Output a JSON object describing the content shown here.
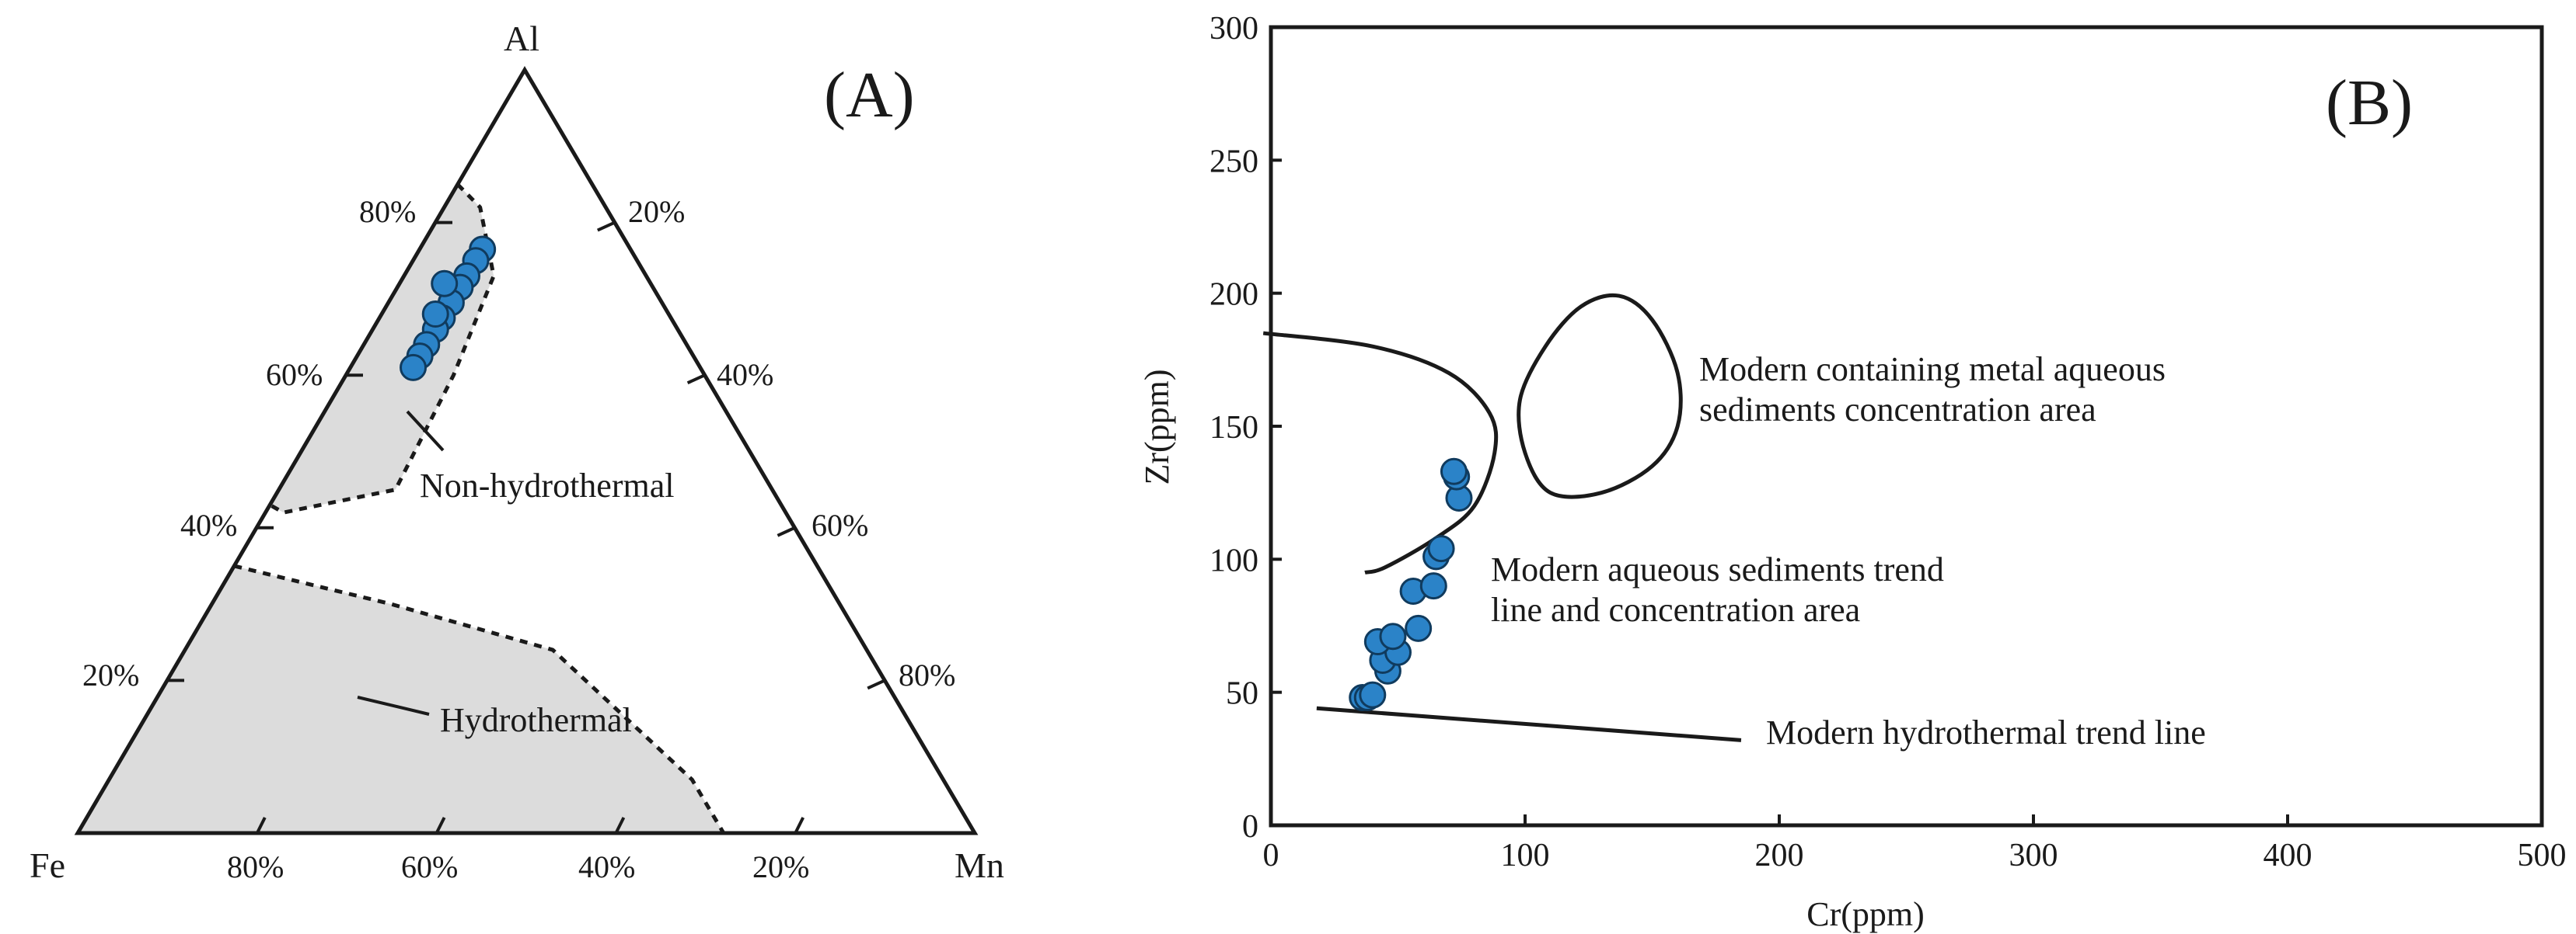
{
  "chart_data": [
    {
      "type": "ternary",
      "panel_label": "(A)",
      "vertices": {
        "top": "Al",
        "left": "Fe",
        "right": "Mn"
      },
      "left_edge_ticks": [
        "80%",
        "60%",
        "40%",
        "20%"
      ],
      "right_edge_ticks": [
        "20%",
        "40%",
        "60%",
        "80%"
      ],
      "base_ticks": [
        "80%",
        "60%",
        "40%",
        "20%"
      ],
      "fields": [
        {
          "name": "Non-hydrothermal",
          "outline": [
            [
              0.15,
              0.85,
              0.0
            ],
            [
              0.14,
              0.82,
              0.04
            ],
            [
              0.17,
              0.73,
              0.1
            ],
            [
              0.28,
              0.6,
              0.12
            ],
            [
              0.42,
              0.45,
              0.13
            ],
            [
              0.56,
              0.42,
              0.02
            ],
            [
              0.57,
              0.43,
              0.0
            ]
          ]
        },
        {
          "name": "Hydrothermal",
          "outline": [
            [
              0.65,
              0.35,
              0.0
            ],
            [
              0.5,
              0.3,
              0.2
            ],
            [
              0.35,
              0.24,
              0.41
            ],
            [
              0.28,
              0.07,
              0.65
            ],
            [
              0.28,
              0.0,
              0.72
            ],
            [
              1.0,
              0.0,
              0.0
            ]
          ]
        }
      ],
      "points": [
        [
          0.165,
          0.765,
          0.07
        ],
        [
          0.18,
          0.75,
          0.07
        ],
        [
          0.2,
          0.73,
          0.07
        ],
        [
          0.215,
          0.715,
          0.07
        ],
        [
          0.235,
          0.695,
          0.07
        ],
        [
          0.255,
          0.675,
          0.07
        ],
        [
          0.27,
          0.66,
          0.07
        ],
        [
          0.29,
          0.64,
          0.07
        ],
        [
          0.305,
          0.625,
          0.07
        ],
        [
          0.32,
          0.61,
          0.07
        ],
        [
          0.23,
          0.72,
          0.05
        ],
        [
          0.26,
          0.68,
          0.06
        ]
      ]
    },
    {
      "type": "scatter",
      "panel_label": "(B)",
      "xlabel": "Cr(ppm)",
      "ylabel": "Zr(ppm)",
      "xlim": [
        0,
        500
      ],
      "ylim": [
        0,
        300
      ],
      "xticks": [
        0,
        100,
        200,
        300,
        400,
        500
      ],
      "yticks": [
        0,
        50,
        100,
        150,
        200,
        250,
        300
      ],
      "points": [
        {
          "x": 36,
          "y": 48
        },
        {
          "x": 38,
          "y": 48
        },
        {
          "x": 40,
          "y": 49
        },
        {
          "x": 46,
          "y": 58
        },
        {
          "x": 44,
          "y": 62
        },
        {
          "x": 50,
          "y": 65
        },
        {
          "x": 42,
          "y": 69
        },
        {
          "x": 48,
          "y": 71
        },
        {
          "x": 58,
          "y": 74
        },
        {
          "x": 56,
          "y": 88
        },
        {
          "x": 64,
          "y": 90
        },
        {
          "x": 65,
          "y": 101
        },
        {
          "x": 67,
          "y": 104
        },
        {
          "x": 74,
          "y": 123
        },
        {
          "x": 73,
          "y": 131
        },
        {
          "x": 72,
          "y": 133
        }
      ],
      "curves": [
        {
          "name": "aqueous-trend-region",
          "points": [
            [
              -3,
              185
            ],
            [
              40,
              180
            ],
            [
              70,
              170
            ],
            [
              86,
              155
            ],
            [
              88,
              140
            ],
            [
              80,
              120
            ],
            [
              65,
              108
            ],
            [
              45,
              97
            ],
            [
              37,
              95
            ]
          ]
        },
        {
          "name": "metal-aqueous-region",
          "closed": true,
          "points": [
            [
              137,
              199
            ],
            [
              150,
              190
            ],
            [
              160,
              170
            ],
            [
              160,
              150
            ],
            [
              150,
              135
            ],
            [
              130,
              125
            ],
            [
              110,
              125
            ],
            [
              100,
              140
            ],
            [
              98,
              160
            ],
            [
              108,
              180
            ],
            [
              122,
              195
            ]
          ]
        },
        {
          "name": "hydrothermal-trend-line",
          "points": [
            [
              18,
              44
            ],
            [
              185,
              32
            ]
          ]
        }
      ],
      "annotations": [
        "Modern containing metal aqueous",
        "sediments concentration area",
        "Modern aqueous sediments trend",
        "line and concentration area",
        "Modern hydrothermal trend line"
      ]
    }
  ],
  "colors": {
    "point": "#2b83c8",
    "point_stroke": "#103b5e",
    "field_fill": "#dcdcdc",
    "line": "#1a1a1a"
  }
}
